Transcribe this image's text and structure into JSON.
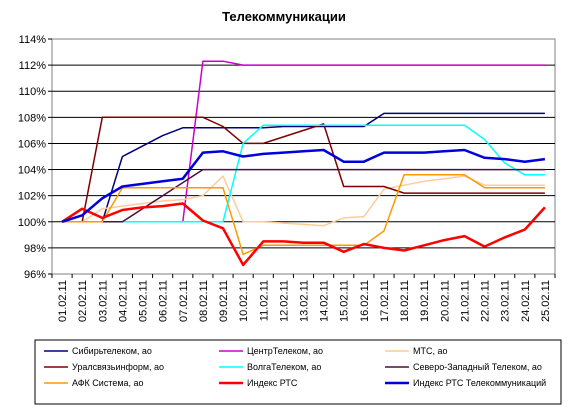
{
  "chart_data": {
    "type": "line",
    "title": "Телекоммуникации",
    "ylim": [
      96,
      114
    ],
    "y_ticks": [
      "96%",
      "98%",
      "100%",
      "102%",
      "104%",
      "106%",
      "108%",
      "110%",
      "112%",
      "114%"
    ],
    "y_tick_values": [
      96,
      98,
      100,
      102,
      104,
      106,
      108,
      110,
      112,
      114
    ],
    "grid": "horizontal",
    "legend_position": "bottom",
    "categories": [
      "01.02.11",
      "02.02.11",
      "03.02.11",
      "04.02.11",
      "05.02.11",
      "06.02.11",
      "07.02.11",
      "08.02.11",
      "09.02.11",
      "10.02.11",
      "11.02.11",
      "12.02.11",
      "13.02.11",
      "14.02.11",
      "15.02.11",
      "16.02.11",
      "17.02.11",
      "18.02.11",
      "19.02.11",
      "20.02.11",
      "21.02.11",
      "22.02.11",
      "23.02.11",
      "24.02.11",
      "25.02.11"
    ],
    "series": [
      {
        "name": "Сибирьтелеком, ао",
        "color": "#000080",
        "width": 1.5,
        "values": [
          100,
          100,
          100,
          105,
          105.8,
          106.6,
          107.2,
          107.2,
          107.2,
          107.2,
          107.2,
          107.3,
          107.3,
          107.3,
          107.3,
          107.3,
          108.3,
          108.3,
          108.3,
          108.3,
          108.3,
          108.3,
          108.3,
          108.3,
          108.3
        ]
      },
      {
        "name": "ЦентрТелеком, ао",
        "color": "#cc00cc",
        "width": 1.5,
        "values": [
          100,
          100,
          100,
          100,
          100,
          100,
          100,
          112.3,
          112.3,
          112.0,
          112.0,
          112.0,
          112.0,
          112.0,
          112.0,
          112.0,
          112.0,
          112.0,
          112.0,
          112.0,
          112.0,
          112.0,
          112.0,
          112.0,
          112.0
        ]
      },
      {
        "name": "МТС, ао",
        "color": "#ffcc99",
        "width": 1.5,
        "values": [
          100,
          100,
          101.0,
          101.2,
          101.4,
          101.6,
          101.7,
          102.0,
          103.5,
          100.0,
          100.0,
          99.9,
          99.8,
          99.7,
          100.3,
          100.4,
          102.5,
          102.8,
          103.1,
          103.3,
          103.5,
          102.8,
          102.8,
          102.8,
          102.8
        ]
      },
      {
        "name": "Уралсвязьинформ, ао",
        "color": "#800000",
        "width": 1.5,
        "values": [
          100,
          100,
          108.0,
          108.0,
          108.0,
          108.0,
          108.0,
          108.0,
          107.3,
          106.0,
          106.0,
          106.5,
          107.0,
          107.5,
          102.7,
          102.7,
          102.7,
          102.2,
          102.2,
          102.2,
          102.2,
          102.2,
          102.2,
          102.2,
          102.2
        ]
      },
      {
        "name": "ВолгаТелеком, ао",
        "color": "#00ffff",
        "width": 1.5,
        "values": [
          100,
          100,
          100,
          100,
          100,
          100,
          100,
          100,
          100,
          106.0,
          107.4,
          107.4,
          107.4,
          107.4,
          107.4,
          107.4,
          107.4,
          107.4,
          107.4,
          107.4,
          107.4,
          106.3,
          104.5,
          103.6,
          103.6
        ]
      },
      {
        "name": "Северо-Западный Телеком, ао",
        "color": "#4b0f3c",
        "width": 1.5,
        "values": [
          100,
          100,
          100,
          100,
          101.0,
          102.0,
          103.0,
          104.0,
          104.0,
          104.0,
          104.0,
          104.0,
          104.0,
          104.0,
          104.0,
          104.0,
          104.0,
          104.0,
          104.0,
          104.0,
          104.0,
          104.0,
          104.0,
          104.0,
          104.0
        ]
      },
      {
        "name": "АФК Система, ао",
        "color": "#ff9900",
        "width": 1.5,
        "values": [
          100,
          100,
          100,
          102.6,
          102.6,
          102.6,
          102.6,
          102.6,
          102.6,
          97.5,
          98.2,
          98.2,
          98.2,
          98.2,
          98.2,
          98.2,
          99.3,
          103.6,
          103.6,
          103.6,
          103.6,
          102.6,
          102.6,
          102.6,
          102.6
        ]
      },
      {
        "name": "Индекс РТС",
        "color": "#ff0000",
        "width": 2.5,
        "values": [
          100,
          101.0,
          100.3,
          100.9,
          101.1,
          101.2,
          101.4,
          100.1,
          99.5,
          96.7,
          98.5,
          98.5,
          98.4,
          98.4,
          97.7,
          98.3,
          98.0,
          97.8,
          98.2,
          98.6,
          98.9,
          98.1,
          98.8,
          99.4,
          101.1
        ]
      },
      {
        "name": "Индекс РТС Телекоммуникаций",
        "color": "#0000dd",
        "width": 2.5,
        "values": [
          100,
          100.5,
          101.8,
          102.7,
          102.9,
          103.1,
          103.3,
          105.3,
          105.4,
          105.0,
          105.2,
          105.3,
          105.4,
          105.5,
          104.6,
          104.6,
          105.3,
          105.3,
          105.3,
          105.4,
          105.5,
          104.9,
          104.8,
          104.6,
          104.8
        ]
      }
    ]
  }
}
